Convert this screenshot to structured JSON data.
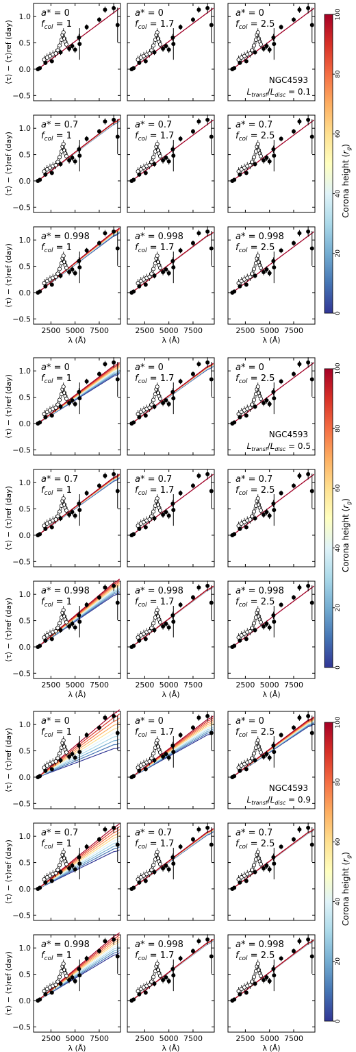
{
  "figure": {
    "colorbar_label": "Corona height (r_g)",
    "colorbar_ticks": [
      "0",
      "20",
      "40",
      "60",
      "80",
      "100"
    ],
    "ylabel": "⟨τ⟩ − ⟨τ⟩ref (day)",
    "xlabel": "λ (Å)",
    "x_tick_labels": [
      "2500",
      "5000",
      "7500"
    ],
    "y_tick_labels": [
      "−0.5",
      "0.0",
      "0.5",
      "1.0"
    ],
    "colors": {
      "low_height": "#313695",
      "high_height": "#a50026",
      "points": "#000000"
    }
  },
  "chart_data": {
    "type": "line",
    "description_source": "NGC4593 lag spectrum with disc reprocessing models",
    "ylim": [
      -0.6,
      1.25
    ],
    "xlim": [
      700,
      9700
    ],
    "x_ticks": [
      2500,
      5000,
      7500
    ],
    "y_ticks": [
      -0.5,
      0.0,
      0.5,
      1.0
    ],
    "colorbar_range": [
      0,
      100
    ],
    "observed_filled": [
      {
        "x": 1150,
        "y": 0.0
      },
      {
        "x": 1350,
        "y": 0.02
      },
      {
        "x": 1928,
        "y": 0.12
      },
      {
        "x": 2600,
        "y": 0.15
      },
      {
        "x": 3500,
        "y": 0.32
      },
      {
        "x": 4390,
        "y": 0.39
      },
      {
        "x": 4700,
        "y": 0.44
      },
      {
        "x": 5000,
        "y": 0.37
      },
      {
        "x": 5404,
        "y": 0.6
      },
      {
        "x": 5468,
        "y": 0.48
      },
      {
        "x": 6200,
        "y": 0.8
      },
      {
        "x": 7500,
        "y": 0.94
      },
      {
        "x": 8100,
        "y": 1.13
      },
      {
        "x": 9000,
        "y": 1.16
      },
      {
        "x": 9400,
        "y": 0.84
      }
    ],
    "observed_filled_err": [
      0.03,
      0.03,
      0.04,
      0.04,
      0.05,
      0.06,
      0.06,
      0.06,
      0.07,
      0.3,
      0.05,
      0.05,
      0.06,
      0.1,
      0.33
    ],
    "observed_open": [
      {
        "x": 1800,
        "y": 0.18
      },
      {
        "x": 2100,
        "y": 0.22
      },
      {
        "x": 2400,
        "y": 0.25
      },
      {
        "x": 2700,
        "y": 0.28
      },
      {
        "x": 3000,
        "y": 0.3
      },
      {
        "x": 3200,
        "y": 0.36
      },
      {
        "x": 3400,
        "y": 0.45
      },
      {
        "x": 3600,
        "y": 0.56
      },
      {
        "x": 3700,
        "y": 0.65
      },
      {
        "x": 3800,
        "y": 0.7
      },
      {
        "x": 3900,
        "y": 0.58
      },
      {
        "x": 4000,
        "y": 0.52
      },
      {
        "x": 4100,
        "y": 0.47
      }
    ],
    "panels": [
      {
        "block": 0,
        "row": 0,
        "col": 0,
        "a": "0",
        "fcol": "1",
        "spread": 0.0,
        "lowdip": 0.0
      },
      {
        "block": 0,
        "row": 0,
        "col": 1,
        "a": "0",
        "fcol": "1.7",
        "spread": 0.0,
        "lowdip": 0.0
      },
      {
        "block": 0,
        "row": 0,
        "col": 2,
        "a": "0",
        "fcol": "2.5",
        "spread": 0.0,
        "lowdip": 0.0
      },
      {
        "block": 0,
        "row": 1,
        "col": 0,
        "a": "0.7",
        "fcol": "1",
        "spread": 0.08,
        "lowdip": 0.0
      },
      {
        "block": 0,
        "row": 1,
        "col": 1,
        "a": "0.7",
        "fcol": "1.7",
        "spread": 0.0,
        "lowdip": 0.0
      },
      {
        "block": 0,
        "row": 1,
        "col": 2,
        "a": "0.7",
        "fcol": "2.5",
        "spread": 0.0,
        "lowdip": 0.0
      },
      {
        "block": 0,
        "row": 2,
        "col": 0,
        "a": "0.998",
        "fcol": "1",
        "spread": 0.18,
        "lowdip": 0.0
      },
      {
        "block": 0,
        "row": 2,
        "col": 1,
        "a": "0.998",
        "fcol": "1.7",
        "spread": 0.02,
        "lowdip": 0.0
      },
      {
        "block": 0,
        "row": 2,
        "col": 2,
        "a": "0.998",
        "fcol": "2.5",
        "spread": 0.0,
        "lowdip": 0.0
      },
      {
        "block": 1,
        "row": 0,
        "col": 0,
        "a": "0",
        "fcol": "1",
        "spread": 0.05,
        "lowdip": 0.18
      },
      {
        "block": 1,
        "row": 0,
        "col": 1,
        "a": "0",
        "fcol": "1.7",
        "spread": 0.02,
        "lowdip": 0.05
      },
      {
        "block": 1,
        "row": 0,
        "col": 2,
        "a": "0",
        "fcol": "2.5",
        "spread": 0.0,
        "lowdip": 0.0
      },
      {
        "block": 1,
        "row": 1,
        "col": 0,
        "a": "0.7",
        "fcol": "1",
        "spread": 0.05,
        "lowdip": 0.05
      },
      {
        "block": 1,
        "row": 1,
        "col": 1,
        "a": "0.7",
        "fcol": "1.7",
        "spread": 0.0,
        "lowdip": 0.0
      },
      {
        "block": 1,
        "row": 1,
        "col": 2,
        "a": "0.7",
        "fcol": "2.5",
        "spread": 0.0,
        "lowdip": 0.0
      },
      {
        "block": 1,
        "row": 2,
        "col": 0,
        "a": "0.998",
        "fcol": "1",
        "spread": 0.3,
        "lowdip": 0.1
      },
      {
        "block": 1,
        "row": 2,
        "col": 1,
        "a": "0.998",
        "fcol": "1.7",
        "spread": 0.04,
        "lowdip": 0.0
      },
      {
        "block": 1,
        "row": 2,
        "col": 2,
        "a": "0.998",
        "fcol": "2.5",
        "spread": 0.0,
        "lowdip": 0.0
      },
      {
        "block": 2,
        "row": 0,
        "col": 0,
        "a": "0",
        "fcol": "1",
        "spread": 0.28,
        "lowdip": 0.55
      },
      {
        "block": 2,
        "row": 0,
        "col": 1,
        "a": "0",
        "fcol": "1.7",
        "spread": 0.05,
        "lowdip": 0.28
      },
      {
        "block": 2,
        "row": 0,
        "col": 2,
        "a": "0",
        "fcol": "2.5",
        "spread": 0.02,
        "lowdip": 0.12
      },
      {
        "block": 2,
        "row": 1,
        "col": 0,
        "a": "0.7",
        "fcol": "1",
        "spread": 0.2,
        "lowdip": 0.38
      },
      {
        "block": 2,
        "row": 1,
        "col": 1,
        "a": "0.7",
        "fcol": "1.7",
        "spread": 0.02,
        "lowdip": 0.05
      },
      {
        "block": 2,
        "row": 1,
        "col": 2,
        "a": "0.7",
        "fcol": "2.5",
        "spread": 0.0,
        "lowdip": 0.02
      },
      {
        "block": 2,
        "row": 2,
        "col": 0,
        "a": "0.998",
        "fcol": "1",
        "spread": 0.3,
        "lowdip": 0.22
      },
      {
        "block": 2,
        "row": 2,
        "col": 1,
        "a": "0.998",
        "fcol": "1.7",
        "spread": 0.06,
        "lowdip": 0.0
      },
      {
        "block": 2,
        "row": 2,
        "col": 2,
        "a": "0.998",
        "fcol": "2.5",
        "spread": 0.04,
        "lowdip": 0.0
      }
    ],
    "annotations": [
      {
        "block": 0,
        "object": "NGC4593",
        "ratio": "0.1"
      },
      {
        "block": 1,
        "object": "NGC4593",
        "ratio": "0.5"
      },
      {
        "block": 2,
        "object": "NGC4593",
        "ratio": "0.9"
      }
    ],
    "grid": false,
    "legend": "colorbar-right"
  }
}
